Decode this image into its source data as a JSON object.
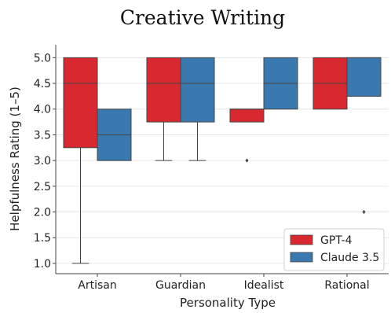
{
  "chart_data": {
    "type": "box",
    "title": "Creative Writing",
    "xlabel": "Personality Type",
    "ylabel": "Helpfulness Rating (1–5)",
    "categories": [
      "Artisan",
      "Guardian",
      "Idealist",
      "Rational"
    ],
    "ylim": [
      0.8,
      5.25
    ],
    "yticks": [
      "1.0",
      "1.5",
      "2.0",
      "2.5",
      "3.0",
      "3.5",
      "4.0",
      "4.5",
      "5.0"
    ],
    "grid": true,
    "legend_position": "lower-right",
    "series": [
      {
        "name": "GPT-4",
        "color": "#d7292f",
        "boxes": [
          {
            "category": "Artisan",
            "whisker_low": 1.0,
            "q1": 3.25,
            "median": 4.5,
            "q3": 5.0,
            "whisker_high": 5.0,
            "outliers": []
          },
          {
            "category": "Guardian",
            "whisker_low": 3.0,
            "q1": 3.75,
            "median": 4.5,
            "q3": 5.0,
            "whisker_high": 5.0,
            "outliers": []
          },
          {
            "category": "Idealist",
            "whisker_low": 3.75,
            "q1": 3.75,
            "median": 4.0,
            "q3": 4.0,
            "whisker_high": 4.0,
            "outliers": [
              3.0
            ]
          },
          {
            "category": "Rational",
            "whisker_low": 4.0,
            "q1": 4.0,
            "median": 4.5,
            "q3": 5.0,
            "whisker_high": 5.0,
            "outliers": []
          }
        ]
      },
      {
        "name": "Claude 3.5",
        "color": "#3a78b0",
        "boxes": [
          {
            "category": "Artisan",
            "whisker_low": 3.0,
            "q1": 3.0,
            "median": 3.5,
            "q3": 4.0,
            "whisker_high": 4.0,
            "outliers": []
          },
          {
            "category": "Guardian",
            "whisker_low": 3.0,
            "q1": 3.75,
            "median": 4.5,
            "q3": 5.0,
            "whisker_high": 5.0,
            "outliers": []
          },
          {
            "category": "Idealist",
            "whisker_low": 4.0,
            "q1": 4.0,
            "median": 4.5,
            "q3": 5.0,
            "whisker_high": 5.0,
            "outliers": []
          },
          {
            "category": "Rational",
            "whisker_low": 4.25,
            "q1": 4.25,
            "median": 5.0,
            "q3": 5.0,
            "whisker_high": 5.0,
            "outliers": [
              2.0
            ]
          }
        ]
      }
    ]
  }
}
